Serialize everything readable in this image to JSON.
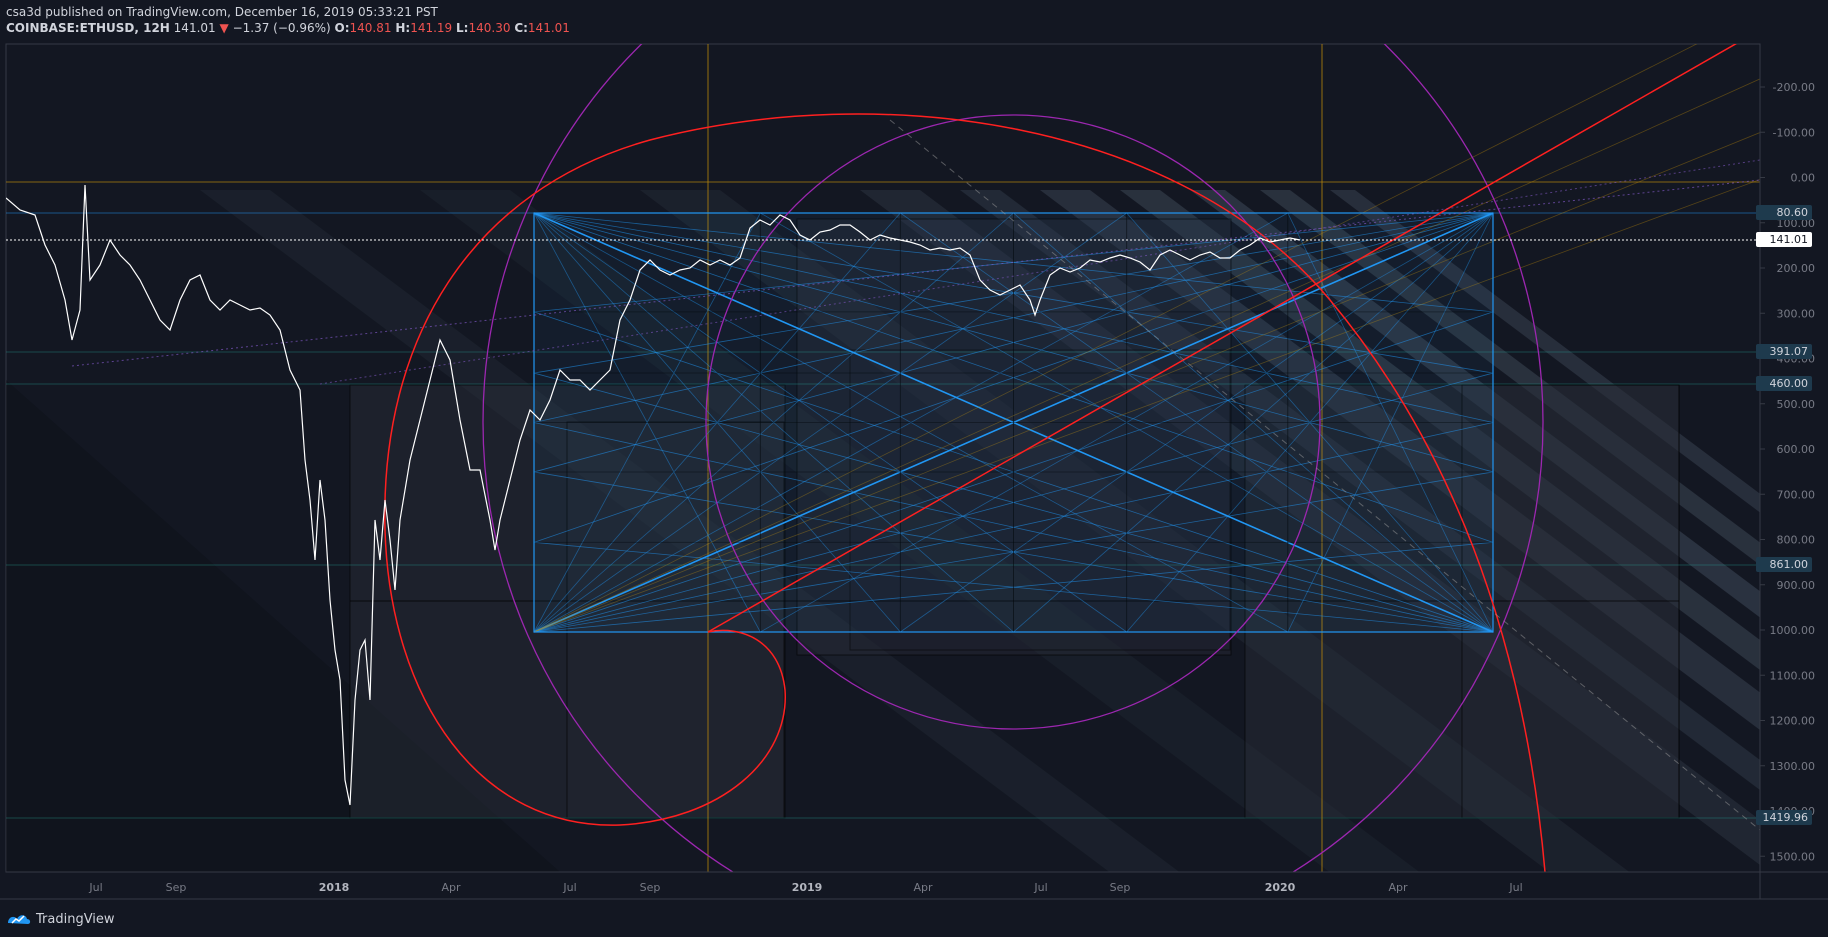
{
  "header": {
    "publisher": "csa3d",
    "published_text": " published on TradingView.com, December 16, 2019 05:33:21 PST",
    "symbol": "COINBASE:ETHUSD, 12H",
    "last": "141.01",
    "change_arrow": "▼",
    "change": "−1.37 (−0.96%)",
    "o_label": "O:",
    "o_value": "140.81",
    "h_label": "H:",
    "h_value": "141.19",
    "l_label": "L:",
    "l_value": "140.30",
    "c_label": "C:",
    "c_value": "141.01"
  },
  "axis": {
    "price_ticks": [
      "-200.00",
      "-100.00",
      "0.00",
      "100.00",
      "200.00",
      "300.00",
      "400.00",
      "500.00",
      "600.00",
      "700.00",
      "800.00",
      "900.00",
      "1000.00",
      "1100.00",
      "1200.00",
      "1300.00",
      "1400.00",
      "1500.00"
    ],
    "time_ticks": [
      "Jul",
      "Sep",
      "2018",
      "Apr",
      "Jul",
      "Sep",
      "2019",
      "Apr",
      "Jul",
      "Sep",
      "2020",
      "Apr",
      "Jul"
    ],
    "bold_ticks": [
      "2018",
      "2019",
      "2020"
    ]
  },
  "price_labels": [
    "80.60",
    "141.01",
    "391.07",
    "460.00",
    "861.00",
    "1419.96"
  ],
  "current_price_label": "141.01",
  "footer": {
    "brand": "TradingView",
    "logo_icon": "tradingview-logo-icon"
  },
  "colors": {
    "background": "#131722",
    "price_line": "#ffffff",
    "fib_box": "#2196f3",
    "spiral": "#ff2020",
    "circles": "#9c27b0",
    "vertical_lines": "#b8860b",
    "down": "#ef5350"
  }
}
